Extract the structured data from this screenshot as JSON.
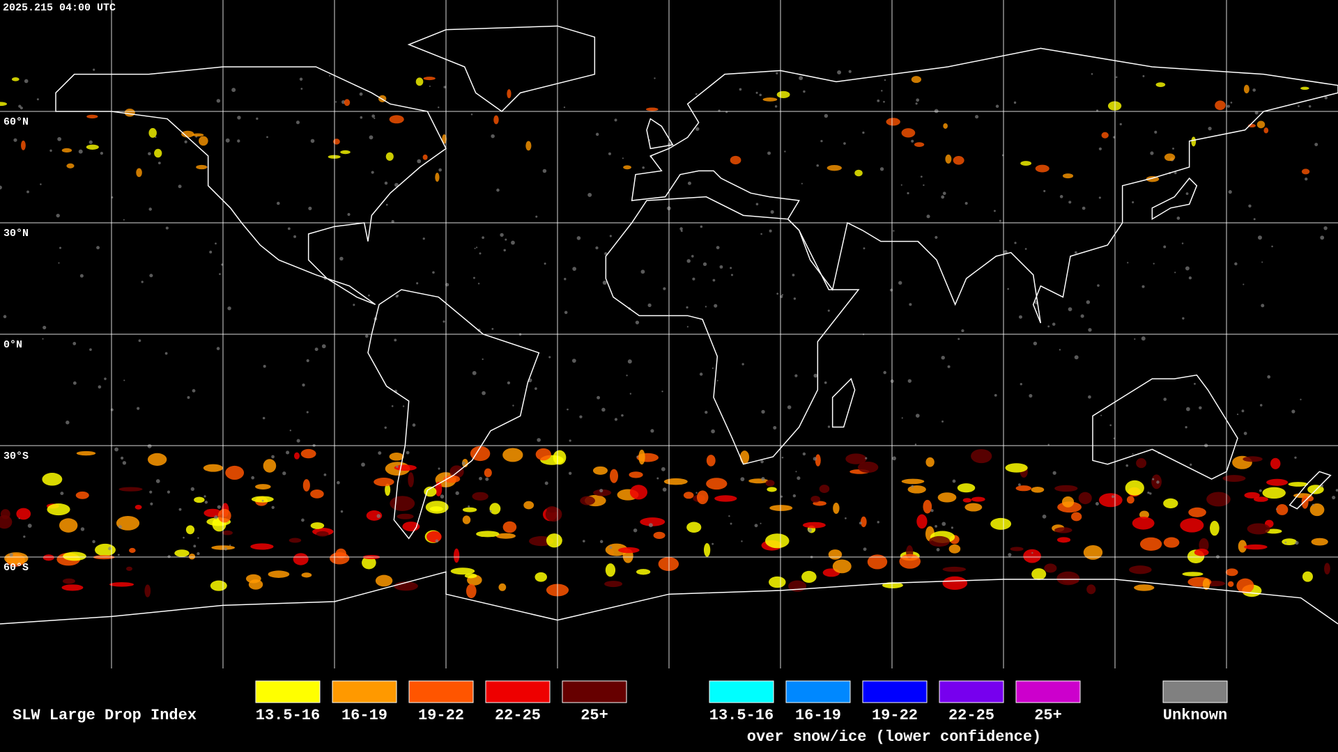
{
  "header": {
    "timestamp": "2025.215 04:00 UTC"
  },
  "map": {
    "lat_labels": [
      "60°N",
      "30°N",
      "0°N",
      "30°S",
      "60°S"
    ]
  },
  "legend": {
    "title": "SLW Large Drop Index",
    "main": [
      {
        "label": "13.5-16",
        "color": "#ffff00"
      },
      {
        "label": "16-19",
        "color": "#ff9900"
      },
      {
        "label": "19-22",
        "color": "#ff5500"
      },
      {
        "label": "22-25",
        "color": "#ee0000"
      },
      {
        "label": "25+",
        "color": "#660000"
      }
    ],
    "snow_ice": [
      {
        "label": "13.5-16",
        "color": "#00ffff"
      },
      {
        "label": "16-19",
        "color": "#0088ff"
      },
      {
        "label": "19-22",
        "color": "#0000ff"
      },
      {
        "label": "22-25",
        "color": "#7700ee"
      },
      {
        "label": "25+",
        "color": "#cc00cc"
      }
    ],
    "caption": "over snow/ice (lower confidence)",
    "unknown": {
      "label": "Unknown",
      "color": "#808080"
    }
  }
}
